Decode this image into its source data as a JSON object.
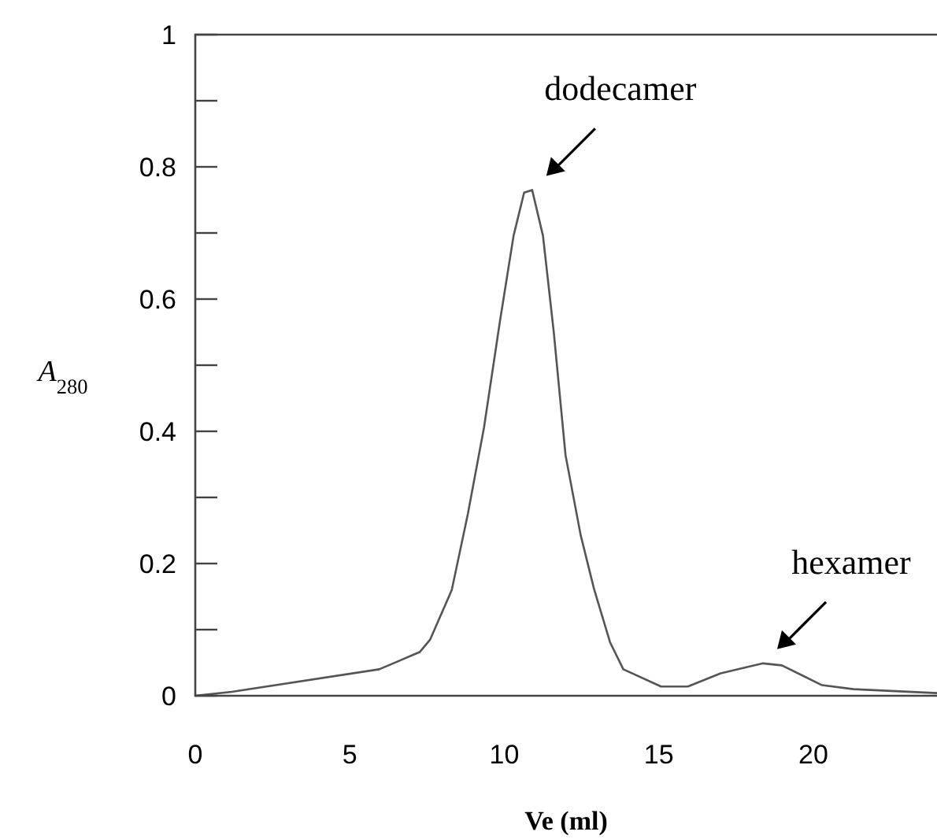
{
  "chart_data": {
    "type": "line",
    "xlabel": "Ve (ml)",
    "ylabel": "A$_{280}$",
    "x": [
      0,
      1.18,
      5.95,
      7.26,
      7.6,
      8.3,
      8.82,
      9.34,
      9.86,
      10.3,
      10.64,
      10.9,
      11.25,
      11.6,
      11.98,
      12.47,
      12.9,
      13.42,
      13.85,
      15.07,
      15.94,
      17.0,
      18.37,
      18.98,
      20.28,
      21.3,
      24
    ],
    "series": [
      {
        "color": "#555555",
        "values": [
          0,
          0.006,
          0.04,
          0.066,
          0.085,
          0.16,
          0.275,
          0.405,
          0.567,
          0.696,
          0.761,
          0.765,
          0.696,
          0.55,
          0.364,
          0.243,
          0.162,
          0.081,
          0.04,
          0.014,
          0.014,
          0.034,
          0.049,
          0.046,
          0.016,
          0.01,
          0.004
        ]
      }
    ],
    "xlim": [
      0,
      24
    ],
    "xticks": [
      0,
      5,
      10,
      15,
      20
    ],
    "ylim": [
      0,
      1
    ],
    "yticks": [
      0,
      {
        "value": 0.1,
        "label": null
      },
      0.2,
      {
        "value": 0.3,
        "label": null
      },
      0.4,
      {
        "value": 0.5,
        "label": null
      },
      0.6,
      {
        "value": 0.7,
        "label": null
      },
      0.8,
      {
        "value": 0.9,
        "label": null
      },
      1
    ],
    "annotations": [
      {
        "text": "dodecamer",
        "x": 10.9,
        "y": 0.765
      },
      {
        "text": "hexamer",
        "x": 18.37,
        "y": 0.049
      }
    ],
    "marker": "none",
    "line_style": "solid",
    "grid": false
  }
}
